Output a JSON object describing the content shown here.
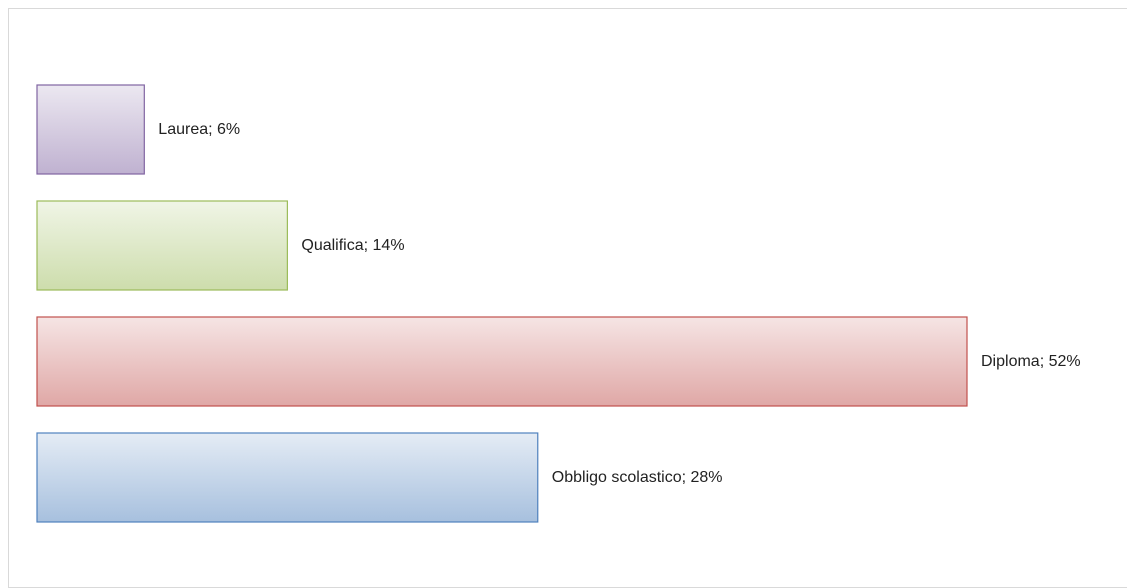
{
  "chart_data": {
    "type": "bar",
    "orientation": "horizontal",
    "values": [
      6,
      14,
      52,
      28
    ],
    "value_labels": [
      "Laurea; 6%",
      "Qualifica; 14%",
      "Diploma; 52%",
      "Obbligo scolastico; 28%"
    ],
    "colors": [
      "#8064a2",
      "#9bbb59",
      "#c0504d",
      "#4f81bd"
    ]
  }
}
